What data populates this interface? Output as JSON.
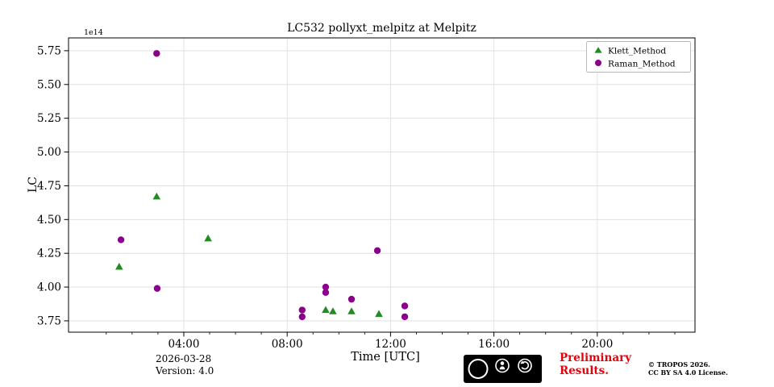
{
  "title": "LC532 pollyxt_melpitz at Melpitz",
  "offset_label": "1e14",
  "xlabel": "Time [UTC]",
  "ylabel": "LC",
  "legend": {
    "entries": [
      {
        "label": "Klett_Method",
        "marker": "triangle",
        "color": "#228B22"
      },
      {
        "label": "Raman_Method",
        "marker": "circle",
        "color": "#8B008B"
      }
    ],
    "position": "upper right"
  },
  "footer": {
    "date": "2026-03-28",
    "version": "Version: 4.0",
    "preliminary_line1": "Preliminary",
    "preliminary_line2": "Results.",
    "preliminary_color": "#e8000b",
    "license_badge": {
      "cc": "CC",
      "by": "BY",
      "sa": "SA"
    },
    "copyright_line1": "© TROPOS 2026.",
    "copyright_line2": "CC BY SA 4.0 License."
  },
  "chart_data": {
    "type": "scatter",
    "title": "LC532 pollyxt_melpitz at Melpitz",
    "xlabel": "Time [UTC]",
    "ylabel": "LC",
    "y_scale_offset": "1e14",
    "grid": true,
    "legend_position": "upper right",
    "xlim": [
      -0.46,
      23.78
    ],
    "ylim": [
      3.666,
      5.845
    ],
    "x_ticks": [
      {
        "hour": 4,
        "label": "04:00"
      },
      {
        "hour": 8,
        "label": "08:00"
      },
      {
        "hour": 12,
        "label": "12:00"
      },
      {
        "hour": 16,
        "label": "16:00"
      },
      {
        "hour": 20,
        "label": "20:00"
      }
    ],
    "y_ticks": [
      {
        "value": 3.75,
        "label": "3.75"
      },
      {
        "value": 4.0,
        "label": "4.00"
      },
      {
        "value": 4.25,
        "label": "4.25"
      },
      {
        "value": 4.5,
        "label": "4.50"
      },
      {
        "value": 4.75,
        "label": "4.75"
      },
      {
        "value": 5.0,
        "label": "5.00"
      },
      {
        "value": 5.25,
        "label": "5.25"
      },
      {
        "value": 5.5,
        "label": "5.50"
      },
      {
        "value": 5.75,
        "label": "5.75"
      }
    ],
    "values_unit": "x1e14 (LC)",
    "series": [
      {
        "name": "Klett_Method",
        "marker": "triangle",
        "color": "#228B22",
        "points": [
          [
            1.5,
            4.15
          ],
          [
            2.95,
            4.67
          ],
          [
            4.94,
            4.36
          ],
          [
            9.49,
            3.83
          ],
          [
            9.77,
            3.82
          ],
          [
            10.49,
            3.82
          ],
          [
            11.55,
            3.8
          ]
        ]
      },
      {
        "name": "Raman_Method",
        "marker": "circle",
        "color": "#8B008B",
        "points": [
          [
            1.57,
            4.35
          ],
          [
            2.95,
            5.73
          ],
          [
            2.97,
            3.99
          ],
          [
            8.58,
            3.83
          ],
          [
            8.58,
            3.78
          ],
          [
            9.49,
            4.0
          ],
          [
            9.49,
            3.96
          ],
          [
            10.49,
            3.91
          ],
          [
            11.49,
            4.27
          ],
          [
            12.55,
            3.86
          ],
          [
            12.55,
            3.78
          ]
        ]
      }
    ]
  }
}
